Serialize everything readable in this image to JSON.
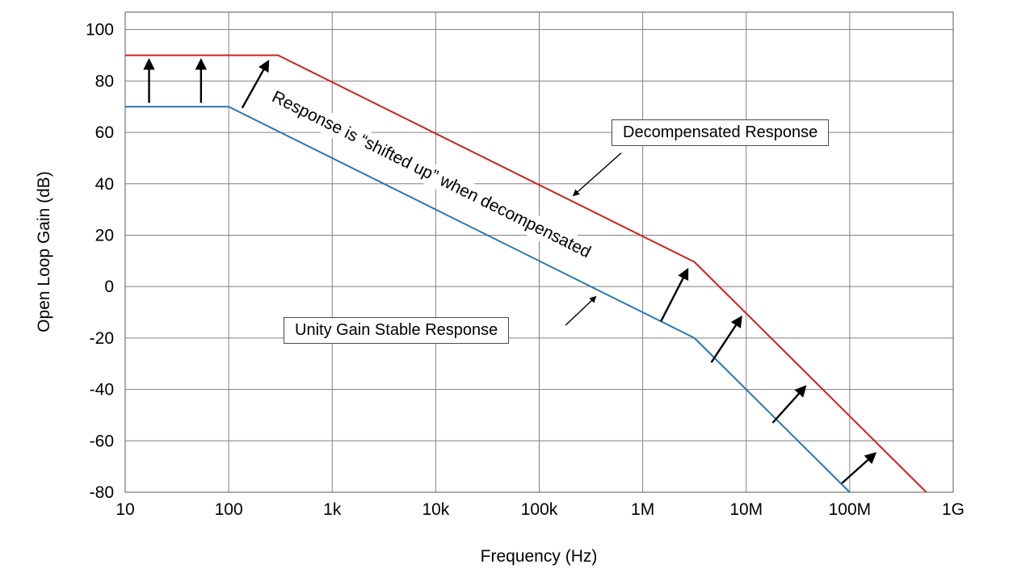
{
  "figure": {
    "x_axis_label": "Frequency (Hz)",
    "y_axis_label": "Open Loop Gain (dB)"
  },
  "chart_data": {
    "type": "line",
    "title": "",
    "xlabel": "Frequency (Hz)",
    "ylabel": "Open Loop Gain (dB)",
    "x_scale": "log",
    "grid": true,
    "legend_position": "none",
    "xlim": [
      10,
      1000000000
    ],
    "ylim": [
      -80,
      106.8
    ],
    "grid_color": "#808080",
    "x_ticks": [
      {
        "label": "10",
        "value": 10
      },
      {
        "label": "100",
        "value": 100
      },
      {
        "label": "1k",
        "value": 1000
      },
      {
        "label": "10k",
        "value": 10000
      },
      {
        "label": "100k",
        "value": 100000
      },
      {
        "label": "1M",
        "value": 1000000
      },
      {
        "label": "10M",
        "value": 10000000
      },
      {
        "label": "100M",
        "value": 100000000
      },
      {
        "label": "1G",
        "value": 1000000000
      }
    ],
    "y_ticks": [
      100,
      80,
      60,
      40,
      20,
      0,
      -20,
      -40,
      -60,
      -80
    ],
    "series": [
      {
        "id": "unity-gain-curve",
        "name": "Unity Gain Stable Response",
        "color": "#2878b4",
        "points": [
          [
            10,
            70
          ],
          [
            100,
            70
          ],
          [
            3160000,
            -20
          ],
          [
            100000000,
            -80
          ]
        ]
      },
      {
        "id": "decompensated-curve",
        "name": "Decompensated Response",
        "color": "#d0201f",
        "points": [
          [
            10,
            90
          ],
          [
            300,
            90
          ],
          [
            3160000,
            9.6
          ],
          [
            550000000,
            -80
          ]
        ]
      }
    ],
    "shift_arrows": [
      {
        "from": [
          17,
          71.5
        ],
        "to": [
          17,
          88
        ]
      },
      {
        "from": [
          54,
          71.5
        ],
        "to": [
          54,
          88
        ]
      },
      {
        "from": [
          135,
          69.5
        ],
        "to": [
          240,
          87.5
        ]
      },
      {
        "from": [
          1500000,
          -13.5
        ],
        "to": [
          2700000,
          6.5
        ]
      },
      {
        "from": [
          4600000,
          -29.5
        ],
        "to": [
          8900000,
          -12
        ]
      },
      {
        "from": [
          18000000,
          -53
        ],
        "to": [
          37000000,
          -39
        ]
      },
      {
        "from": [
          84000000,
          -76.5
        ],
        "to": [
          175000000,
          -65
        ]
      }
    ],
    "annotations": {
      "shifted_up": {
        "text": "Response is “shifted up” when decompensated",
        "rotation_deg": 26.5
      },
      "decompensated_label": {
        "text": "Decompensated Response",
        "arrow": {
          "from": [
            620000,
            52
          ],
          "to": [
            215000,
            35.5
          ]
        }
      },
      "unity_label": {
        "text": "Unity Gain Stable Response",
        "arrow": {
          "from": [
            180000,
            -15
          ],
          "to": [
            350000,
            -4
          ]
        }
      }
    }
  }
}
